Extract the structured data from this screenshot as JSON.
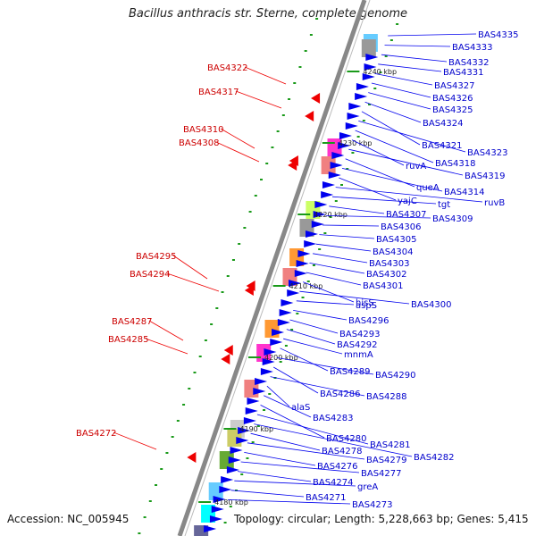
{
  "map": {
    "title": "Bacillus anthracis str. Sterne, complete genome",
    "accession": "Accession: NC_005945",
    "topology": "Topology: circular; Length: 5,228,663 bp; Genes: 5,415"
  },
  "colors": {
    "right_label": "#0000cc",
    "left_label": "#cc0000",
    "backbone": "#888888"
  },
  "kbp_labels": [
    "4240 kbp",
    "4230 kbp",
    "4220 kbp",
    "4210 kbp",
    "4200 kbp",
    "4190 kbp",
    "4180 kbp"
  ],
  "right_labels": [
    "BAS4335",
    "BAS4333",
    "BAS4332",
    "BAS4331",
    "BAS4327",
    "BAS4326",
    "BAS4325",
    "BAS4324",
    "BAS4321",
    "BAS4323",
    "BAS4318",
    "ruvA",
    "BAS4319",
    "queA",
    "BAS4314",
    "yajC",
    "ruvB",
    "tgt",
    "BAS4307",
    "BAS4309",
    "BAS4306",
    "BAS4305",
    "BAS4304",
    "BAS4303",
    "BAS4302",
    "BAS4301",
    "hisS",
    "BAS4300",
    "aspS",
    "BAS4296",
    "BAS4293",
    "BAS4292",
    "mnmA",
    "BAS4289",
    "BAS4290",
    "BAS4286",
    "BAS4288",
    "alaS",
    "BAS4283",
    "BAS4280",
    "BAS4281",
    "BAS4282",
    "BAS4278",
    "BAS4279",
    "BAS4276",
    "BAS4277",
    "BAS4274",
    "greA",
    "BAS4271",
    "BAS4273"
  ],
  "left_labels": [
    "BAS4322",
    "BAS4317",
    "BAS4310",
    "BAS4308",
    "BAS4295",
    "BAS4294",
    "BAS4287",
    "BAS4285",
    "BAS4272"
  ]
}
